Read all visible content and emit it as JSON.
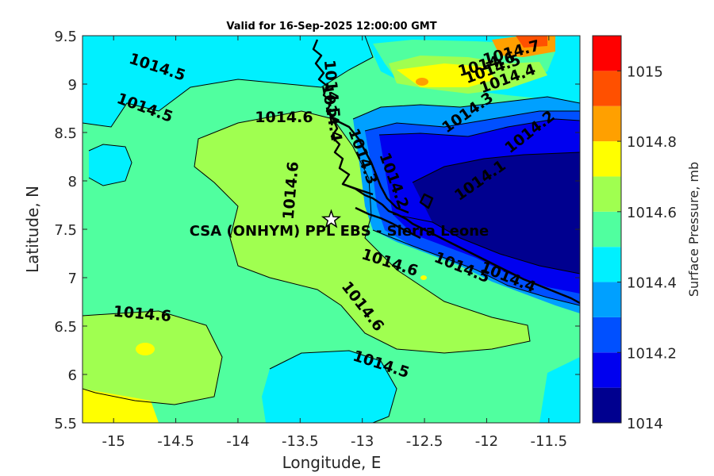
{
  "title": "Valid for 16-Sep-2025 12:00:00 GMT",
  "xlabel": "Longitude, E",
  "ylabel": "Latitude, N",
  "colorbar_label": "Surface Pressure, mb",
  "site_label": "CSA (ONHYM) PPL EBS - Sierra Leone",
  "site_marker": {
    "lon": -13.25,
    "lat": 7.6
  },
  "xticks": [
    "-15",
    "-14.5",
    "-14",
    "-13.5",
    "-13",
    "-12.5",
    "-12",
    "-11.5"
  ],
  "yticks": [
    "9.5",
    "9",
    "8.5",
    "8",
    "7.5",
    "7",
    "6.5",
    "6",
    "5.5"
  ],
  "colorbar_ticks": [
    "1015",
    "1014.8",
    "1014.6",
    "1014.4",
    "1014.2",
    "1014"
  ],
  "colorbar_levels": [
    {
      "value": 1014.0,
      "color": "#00008f"
    },
    {
      "value": 1014.1,
      "color": "#0000ef"
    },
    {
      "value": 1014.2,
      "color": "#0050ff"
    },
    {
      "value": 1014.3,
      "color": "#00a0ff"
    },
    {
      "value": 1014.4,
      "color": "#00f0ff"
    },
    {
      "value": 1014.5,
      "color": "#50ff9f"
    },
    {
      "value": 1014.6,
      "color": "#a0ff50"
    },
    {
      "value": 1014.7,
      "color": "#ffff00"
    },
    {
      "value": 1014.8,
      "color": "#ffa000"
    },
    {
      "value": 1014.9,
      "color": "#ff5000"
    },
    {
      "value": 1015.0,
      "color": "#ff0000"
    },
    {
      "value": 1015.1,
      "color": "#af0000"
    }
  ],
  "contour_labels": [
    {
      "text": "1014.5",
      "lon": -14.65,
      "lat": 9.17,
      "rot": 18
    },
    {
      "text": "1014.5",
      "lon": -14.75,
      "lat": 8.75,
      "rot": 20
    },
    {
      "text": "1014.6",
      "lon": -13.63,
      "lat": 8.65,
      "rot": 0
    },
    {
      "text": "1014.6",
      "lon": -13.57,
      "lat": 7.9,
      "rot": -85
    },
    {
      "text": "1014.6",
      "lon": -14.77,
      "lat": 6.62,
      "rot": 5
    },
    {
      "text": "1014.6",
      "lon": -13.0,
      "lat": 6.7,
      "rot": 52
    },
    {
      "text": "1014.5",
      "lon": -12.85,
      "lat": 6.1,
      "rot": 18
    },
    {
      "text": "1014.6",
      "lon": -12.78,
      "lat": 7.15,
      "rot": 18
    },
    {
      "text": "1014.5",
      "lon": -12.2,
      "lat": 7.1,
      "rot": 22
    },
    {
      "text": "1014.4",
      "lon": -11.83,
      "lat": 7.0,
      "rot": 22
    },
    {
      "text": "1014.1",
      "lon": -12.05,
      "lat": 8.0,
      "rot": -35
    },
    {
      "text": "1014.2",
      "lon": -11.65,
      "lat": 8.5,
      "rot": -38
    },
    {
      "text": "1014.3",
      "lon": -12.15,
      "lat": 8.7,
      "rot": -35
    },
    {
      "text": "1014.4",
      "lon": -11.83,
      "lat": 9.05,
      "rot": -20
    },
    {
      "text": "1014.5",
      "lon": -11.95,
      "lat": 9.15,
      "rot": -20
    },
    {
      "text": "1014.6",
      "lon": -12.0,
      "lat": 9.2,
      "rot": -15
    },
    {
      "text": "1014.7",
      "lon": -11.8,
      "lat": 9.32,
      "rot": -15
    },
    {
      "text": "1014.2",
      "lon": -12.75,
      "lat": 8.0,
      "rot": 70
    },
    {
      "text": "1014.3",
      "lon": -13.0,
      "lat": 8.25,
      "rot": 70
    },
    {
      "text": "1014.4",
      "lon": -13.25,
      "lat": 8.7,
      "rot": 80
    },
    {
      "text": "1014.5",
      "lon": -13.25,
      "lat": 8.95,
      "rot": 85
    }
  ],
  "chart_data": {
    "type": "heatmap",
    "title": "Valid for 16-Sep-2025 12:00:00 GMT",
    "xlabel": "Longitude, E",
    "ylabel": "Latitude, N",
    "xlim": [
      -15.25,
      -11.25
    ],
    "ylim": [
      5.5,
      9.5
    ],
    "clim": [
      1014.0,
      1015.1
    ],
    "colorbar_label": "Surface Pressure, mb",
    "contour_interval": 0.1
  }
}
